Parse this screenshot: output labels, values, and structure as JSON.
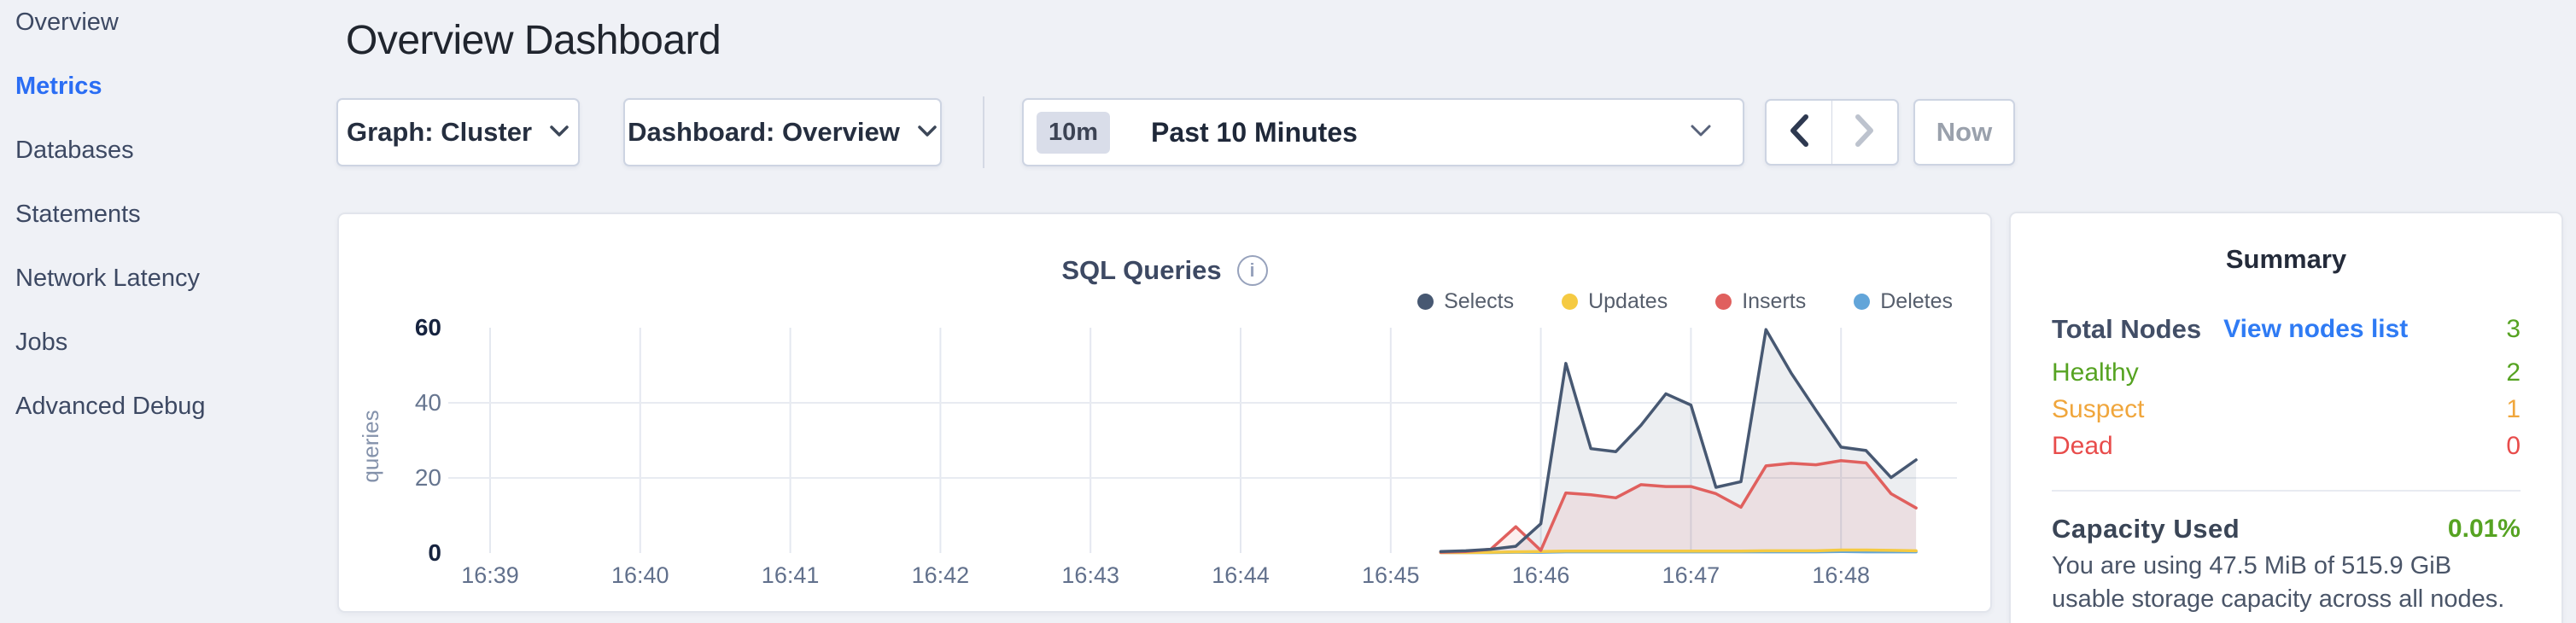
{
  "sidebar": {
    "items": [
      {
        "label": "Overview",
        "active": false
      },
      {
        "label": "Metrics",
        "active": true
      },
      {
        "label": "Databases",
        "active": false
      },
      {
        "label": "Statements",
        "active": false
      },
      {
        "label": "Network Latency",
        "active": false
      },
      {
        "label": "Jobs",
        "active": false
      },
      {
        "label": "Advanced Debug",
        "active": false
      }
    ]
  },
  "header": {
    "title": "Overview Dashboard"
  },
  "toolbar": {
    "graph_dropdown": {
      "label": "Graph: Cluster"
    },
    "dashboard_dropdown": {
      "label": "Dashboard: Overview"
    },
    "time_selector": {
      "badge": "10m",
      "label": "Past 10 Minutes"
    },
    "now_label": "Now",
    "icons": {
      "dropdown_chevron": "chevron-down",
      "prev_arrow": "chevron-left",
      "next_arrow": "chevron-right"
    }
  },
  "chart_data": {
    "type": "line",
    "title": "SQL Queries",
    "info_icon_glyph": "i",
    "ylabel": "queries",
    "ylim": [
      0,
      60
    ],
    "yticks": [
      0,
      20,
      40,
      60
    ],
    "x_ticks": [
      "16:39",
      "16:40",
      "16:41",
      "16:42",
      "16:43",
      "16:44",
      "16:45",
      "16:46",
      "16:47",
      "16:48"
    ],
    "x_axis_window": "16:38:47 - 16:48:48",
    "grid": true,
    "legend_position": "top-right",
    "series_start_time": "16:45:20",
    "sample_interval_sec": 10,
    "series": [
      {
        "name": "Selects",
        "color": "#475872",
        "fill": "rgba(71,88,114,0.10)",
        "values": [
          0.4,
          0.6,
          1.0,
          1.8,
          7.8,
          50.5,
          27.8,
          27.0,
          34.0,
          42.4,
          39.4,
          17.5,
          19.0,
          59.5,
          48.0,
          38.0,
          28.2,
          27.3,
          20.1,
          24.8
        ]
      },
      {
        "name": "Updates",
        "color": "#f5ca42",
        "fill": "none",
        "values": [
          0.1,
          0.1,
          0.2,
          0.3,
          0.4,
          0.5,
          0.5,
          0.5,
          0.5,
          0.5,
          0.5,
          0.5,
          0.5,
          0.6,
          0.6,
          0.6,
          0.8,
          0.8,
          0.7,
          0.6
        ]
      },
      {
        "name": "Inserts",
        "color": "#e0605e",
        "fill": "rgba(224,96,94,0.10)",
        "values": [
          0.2,
          0.4,
          1.0,
          7.0,
          0.7,
          16.0,
          15.5,
          14.7,
          18.2,
          17.7,
          17.7,
          15.8,
          12.2,
          23.2,
          23.9,
          23.5,
          24.6,
          24.0,
          15.8,
          12.0
        ]
      },
      {
        "name": "Deletes",
        "color": "#62a5d9",
        "fill": "none",
        "values": [
          0.1,
          0.1,
          0.1,
          0.2,
          0.2,
          0.3,
          0.3,
          0.3,
          0.3,
          0.3,
          0.3,
          0.3,
          0.3,
          0.3,
          0.3,
          0.3,
          0.4,
          0.3,
          0.3,
          0.3
        ]
      }
    ]
  },
  "summary": {
    "heading": "Summary",
    "total_nodes": {
      "label": "Total Nodes",
      "link": "View nodes list",
      "value": "3"
    },
    "statuses": [
      {
        "label": "Healthy",
        "value": "2",
        "color": "#56a322"
      },
      {
        "label": "Suspect",
        "value": "1",
        "color": "#f0a63c"
      },
      {
        "label": "Dead",
        "value": "0",
        "color": "#e84c4b"
      }
    ],
    "capacity": {
      "label": "Capacity Used",
      "value": "0.01%"
    },
    "capacity_desc": "You are using 47.5 MiB of 515.9 GiB usable storage capacity across all nodes.",
    "colors": {
      "green": "#56a322",
      "orange": "#f0a63c",
      "red": "#e84c4b",
      "link_blue": "#2f7bf4"
    }
  }
}
